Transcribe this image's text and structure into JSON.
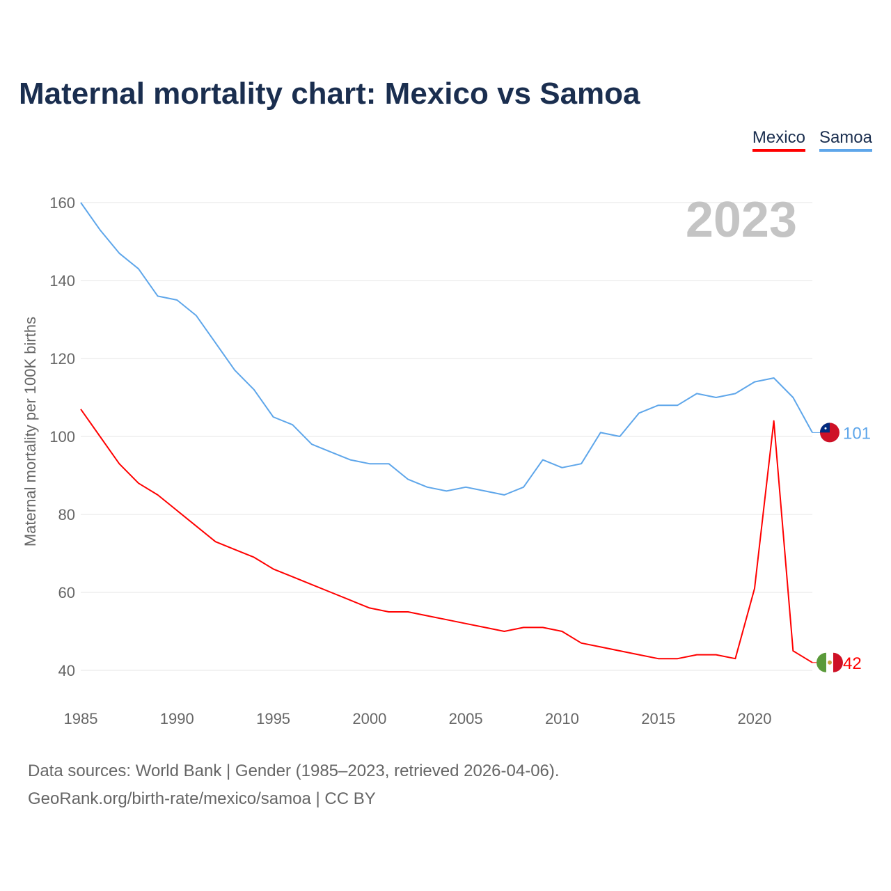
{
  "chart_data": {
    "type": "line",
    "title": "Maternal mortality chart: Mexico vs Samoa",
    "ylabel": "Maternal mortality per 100K births",
    "xlabel": "",
    "year_label": "2023",
    "x": [
      1985,
      1986,
      1987,
      1988,
      1989,
      1990,
      1991,
      1992,
      1993,
      1994,
      1995,
      1996,
      1997,
      1998,
      1999,
      2000,
      2001,
      2002,
      2003,
      2004,
      2005,
      2006,
      2007,
      2008,
      2009,
      2010,
      2011,
      2012,
      2013,
      2014,
      2015,
      2016,
      2017,
      2018,
      2019,
      2020,
      2021,
      2022,
      2023
    ],
    "xlim": [
      1985,
      2023
    ],
    "ylim": [
      40,
      160
    ],
    "xticks": [
      "1985",
      "1990",
      "1995",
      "2000",
      "2005",
      "2010",
      "2015",
      "2020"
    ],
    "yticks": [
      "40",
      "60",
      "80",
      "100",
      "120",
      "140",
      "160"
    ],
    "grid": true,
    "legend_position": "top-right",
    "series": [
      {
        "name": "Mexico",
        "color": "#ff0000",
        "end_label": "42",
        "values": [
          107,
          100,
          93,
          88,
          85,
          81,
          77,
          73,
          71,
          69,
          66,
          64,
          62,
          60,
          58,
          56,
          55,
          55,
          54,
          53,
          52,
          51,
          50,
          51,
          51,
          50,
          47,
          46,
          45,
          44,
          43,
          43,
          44,
          44,
          43,
          61,
          104,
          45,
          42
        ]
      },
      {
        "name": "Samoa",
        "color": "#5ea6ea",
        "end_label": "101",
        "values": [
          160,
          153,
          147,
          143,
          136,
          135,
          131,
          124,
          117,
          112,
          105,
          103,
          98,
          96,
          94,
          93,
          93,
          89,
          87,
          86,
          87,
          86,
          85,
          87,
          94,
          92,
          93,
          101,
          100,
          106,
          108,
          108,
          111,
          110,
          111,
          114,
          115,
          110,
          101
        ]
      }
    ]
  },
  "source_line1": "Data sources: World Bank | Gender (1985–2023, retrieved 2026-04-06).",
  "source_line2": "GeoRank.org/birth-rate/mexico/samoa | CC BY"
}
